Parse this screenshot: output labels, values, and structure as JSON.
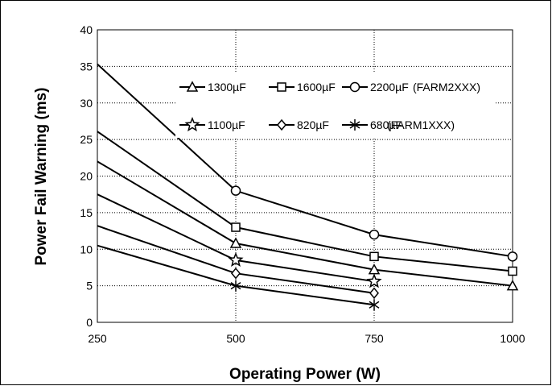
{
  "chart_data": {
    "type": "line",
    "xlabel": "Operating Power (W)",
    "ylabel": "Power Fail Warning (ms)",
    "x_ticks": [
      "250",
      "500",
      "750",
      "1000"
    ],
    "y_ticks": [
      "0",
      "5",
      "10",
      "15",
      "20",
      "25",
      "30",
      "35",
      "40"
    ],
    "xlim": [
      250,
      1000
    ],
    "ylim": [
      0,
      40
    ],
    "grid": "dotted",
    "legend_groups": [
      {
        "label": "(FARM2XXX)",
        "series": [
          "1300µF",
          "1600µF",
          "2200µF"
        ]
      },
      {
        "label": "(FARM1XXX)",
        "series": [
          "1100µF",
          "820µF",
          "680µF"
        ]
      }
    ],
    "series": [
      {
        "name": "2200µF",
        "marker": "circle",
        "points": [
          [
            250,
            35.3
          ],
          [
            500,
            18
          ],
          [
            750,
            12
          ],
          [
            1000,
            9
          ]
        ]
      },
      {
        "name": "1600µF",
        "marker": "square",
        "points": [
          [
            250,
            26.1
          ],
          [
            500,
            13
          ],
          [
            750,
            9
          ],
          [
            1000,
            7
          ]
        ]
      },
      {
        "name": "1300µF",
        "marker": "triangle",
        "points": [
          [
            250,
            22
          ],
          [
            500,
            10.8
          ],
          [
            750,
            7.2
          ],
          [
            1000,
            5
          ]
        ]
      },
      {
        "name": "1100µF",
        "marker": "star",
        "points": [
          [
            250,
            17.5
          ],
          [
            500,
            8.5
          ],
          [
            750,
            5.6
          ]
        ]
      },
      {
        "name": "820µF",
        "marker": "diamond",
        "points": [
          [
            250,
            13.2
          ],
          [
            500,
            6.7
          ],
          [
            750,
            4
          ]
        ]
      },
      {
        "name": "680µF",
        "marker": "asterisk",
        "points": [
          [
            250,
            10.5
          ],
          [
            500,
            5
          ],
          [
            750,
            2.4
          ]
        ]
      }
    ]
  }
}
